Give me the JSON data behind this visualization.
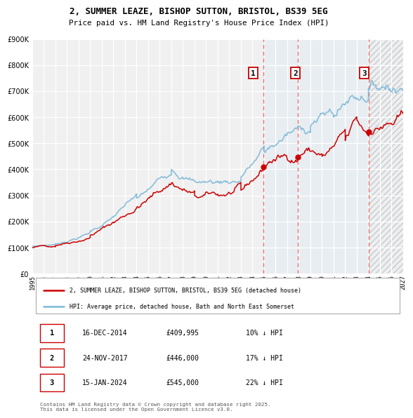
{
  "title": "2, SUMMER LEAZE, BISHOP SUTTON, BRISTOL, BS39 5EG",
  "subtitle": "Price paid vs. HM Land Registry's House Price Index (HPI)",
  "sale_prices": [
    409995,
    446000,
    545000
  ],
  "sale_labels": [
    "1",
    "2",
    "3"
  ],
  "sale_hpi_diff": [
    "10% ↓ HPI",
    "17% ↓ HPI",
    "22% ↓ HPI"
  ],
  "sale_date_labels": [
    "16-DEC-2014",
    "24-NOV-2017",
    "15-JAN-2024"
  ],
  "sale_price_labels": [
    "£409,995",
    "£446,000",
    "£545,000"
  ],
  "sale_year_nums": [
    2014.96,
    2017.9,
    2024.04
  ],
  "hpi_color": "#7ab8d9",
  "sale_color": "#cc0000",
  "vline_color": "#e87070",
  "shade_color": "#d6e8f5",
  "bg_color": "#f0f0f0",
  "ylim": [
    0,
    900000
  ],
  "yticks": [
    0,
    100000,
    200000,
    300000,
    400000,
    500000,
    600000,
    700000,
    800000,
    900000
  ],
  "xmin": 1995,
  "xmax": 2027,
  "legend_line1": "2, SUMMER LEAZE, BISHOP SUTTON, BRISTOL, BS39 5EG (detached house)",
  "legend_line2": "HPI: Average price, detached house, Bath and North East Somerset",
  "footer": "Contains HM Land Registry data © Crown copyright and database right 2025.\nThis data is licensed under the Open Government Licence v3.0."
}
